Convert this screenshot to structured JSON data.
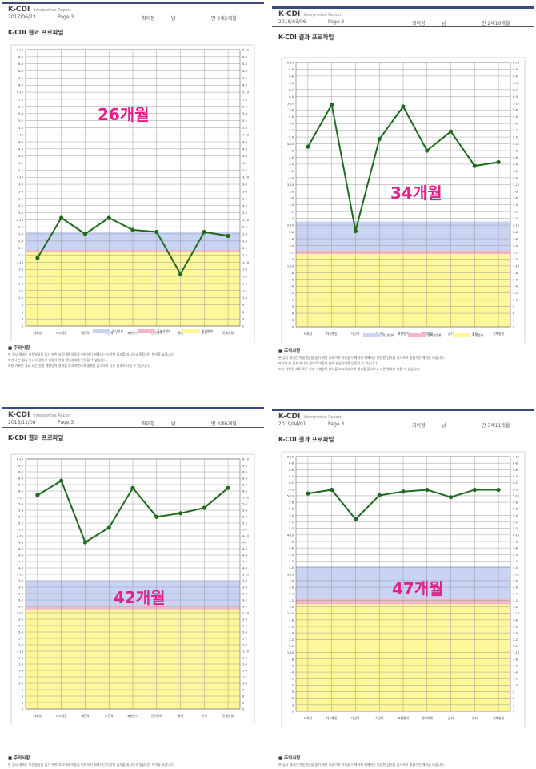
{
  "panels": [
    {
      "brand": "K-CDI",
      "brand_sub": "Interpretive Report",
      "date": "2017/06/23",
      "page": "Page 3",
      "name": "최이정",
      "gender": "남",
      "age": "만 2세2개월",
      "title": "K-CDI 결과 프로파일",
      "age_label": "26개월",
      "notes_title": "■ 주의사항",
      "notes": [
        "본 검사 결과는 아동발달을 돕기 위한 자료이며 아동을 이해하기 위해서는 다양한 검사를 실시하고 종합적인 해석을 요합니다.",
        "따라서 본 검사 하나의 결과로 아동의 현재 발달상태를 단정할 수 없습니다.",
        "또한 기록된 자료 모든 문항 개별영역 결과를 보고하였으며 결과를 참고하고 다른 결과가 나올 수 있습니다."
      ],
      "legend": [
        "정상범위",
        "경계선범위",
        "지연범위"
      ],
      "chart_data": {
        "type": "line",
        "categories": [
          "사회성",
          "자조행동",
          "대근육",
          "소근육",
          "표현언어",
          "언어이해",
          "글자",
          "숫자",
          "전체발달"
        ],
        "values": [
          1.7,
          2.7,
          2.3,
          2.7,
          2.4,
          2.35,
          1.3,
          2.35,
          2.25
        ],
        "left_ticks": [
          "6-10",
          "6-8",
          "6-6",
          "6-4",
          "6-2",
          "6-0",
          "5-10",
          "5-8",
          "5-6",
          "5-4",
          "5-2",
          "5-0",
          "4-10",
          "4-8",
          "4-6",
          "4-4",
          "4-2",
          "4-0",
          "3-10",
          "3-8",
          "3-6",
          "3-4",
          "3-2",
          "3-0",
          "2-10",
          "2-8",
          "2-6",
          "2-4",
          "2-2",
          "2-0",
          "1-10",
          "1-8",
          "1-6",
          "1-4",
          "1-2",
          "1-0",
          "9",
          "6",
          "3",
          "0"
        ],
        "right_ticks": [
          "6-10",
          "6-8",
          "6-6",
          "6-4",
          "6-2",
          "6-0",
          "5-10",
          "5-8",
          "5-6",
          "5-4",
          "5-2",
          "5-0",
          "4-10",
          "4-8",
          "4-6",
          "4-4",
          "4-2",
          "4-0",
          "3-10",
          "3-8",
          "3-6",
          "3-4",
          "3-2",
          "3-0",
          "2-10",
          "2-8",
          "2-6",
          "2-4",
          "2-2",
          "2-0",
          "1-10",
          "1-8",
          "1-6",
          "1-4",
          "1-2",
          "1-0",
          "9",
          "6",
          "3",
          "0"
        ],
        "normal_range": [
          1.9,
          2.35
        ],
        "borderline_range": [
          1.85,
          1.9
        ],
        "delayed_range": [
          0,
          1.85
        ],
        "ylim": [
          0,
          6.9
        ],
        "grid": true,
        "colors": {
          "line": "#1e6b1e",
          "normal": "#c9d4f4",
          "borderline": "#f2b8c6",
          "delayed": "#fff79a",
          "age": "#e0218a"
        }
      }
    },
    {
      "brand": "K-CDI",
      "brand_sub": "Interpretive Report",
      "date": "2018/03/06",
      "page": "Page 3",
      "name": "최이정",
      "gender": "남",
      "age": "만 2세10개월",
      "title": "K-CDI 결과 프로파일",
      "age_label": "34개월",
      "notes_title": "■ 주의사항",
      "notes": [
        "본 검사 결과는 아동발달을 돕기 위한 자료이며 아동을 이해하기 위해서는 다양한 검사를 실시하고 종합적인 해석을 요합니다.",
        "따라서 본 검사 하나의 결과로 아동의 현재 발달상태를 단정할 수 없습니다.",
        "또한 기록된 자료 모든 문항 개별영역 결과를 보고하였으며 결과를 참고하고 다른 결과가 나올 수 있습니다."
      ],
      "legend": [
        "정상범위",
        "경계선범위",
        "지연범위"
      ],
      "chart_data": {
        "type": "line",
        "categories": [
          "사회성",
          "자조행동",
          "대근육",
          "소근육",
          "표현언어",
          "언어이해",
          "글자",
          "숫자",
          "전체발달"
        ],
        "values": [
          4.7,
          5.8,
          2.5,
          4.9,
          5.75,
          4.6,
          5.1,
          4.2,
          4.3
        ],
        "left_ticks": [
          "6-10",
          "6-8",
          "6-6",
          "6-4",
          "6-2",
          "6-0",
          "5-10",
          "5-8",
          "5-6",
          "5-4",
          "5-2",
          "5-0",
          "4-10",
          "4-8",
          "4-6",
          "4-4",
          "4-2",
          "4-0",
          "3-10",
          "3-8",
          "3-6",
          "3-4",
          "3-2",
          "3-0",
          "2-10",
          "2-8",
          "2-6",
          "2-4",
          "2-2",
          "2-0",
          "1-10",
          "1-8",
          "1-6",
          "1-4",
          "1-2",
          "1-0",
          "9",
          "6",
          "3",
          "0"
        ],
        "right_ticks": [
          "6-10",
          "6-8",
          "6-6",
          "6-4",
          "6-2",
          "6-0",
          "5-10",
          "5-8",
          "5-6",
          "5-4",
          "5-2",
          "5-0",
          "4-10",
          "4-8",
          "4-6",
          "4-4",
          "4-2",
          "4-0",
          "3-10",
          "3-8",
          "3-6",
          "3-4",
          "3-2",
          "3-0",
          "2-10",
          "2-8",
          "2-6",
          "2-4",
          "2-2",
          "2-0",
          "1-10",
          "1-8",
          "1-6",
          "1-4",
          "1-2",
          "1-0",
          "9",
          "6",
          "3",
          "0"
        ],
        "normal_range": [
          2.0,
          2.75
        ],
        "borderline_range": [
          1.9,
          2.0
        ],
        "delayed_range": [
          0,
          1.9
        ],
        "ylim": [
          0,
          6.9
        ],
        "grid": true,
        "colors": {
          "line": "#1e6b1e",
          "normal": "#c9d4f4",
          "borderline": "#f2b8c6",
          "delayed": "#fff79a",
          "age": "#e0218a"
        }
      }
    },
    {
      "brand": "K-CDI",
      "brand_sub": "Interpretive Report",
      "date": "2018/11/08",
      "page": "Page 3",
      "name": "최이정",
      "gender": "남",
      "age": "만 3세6개월",
      "title": "K-CDI 결과 프로파일",
      "age_label": "42개월",
      "notes_title": "■ 주의사항",
      "notes": [
        "본 검사 결과는 아동발달을 돕기 위한 자료이며 아동을 이해하기 위해서는 다양한 검사를 실시하고 종합적인 해석을 요합니다.",
        "따라서 본 검사 하나의 결과로 아동의 현재 발달상태를 단정할 수 없습니다.",
        "또한 기록된 자료 모든 문항 개별영역 결과를 보고하였으며 결과를 참고하고 다른 결과가 나올 수 있습니다."
      ],
      "legend": [
        "정상범위",
        "경계선범위",
        "지연범위"
      ],
      "chart_data": {
        "type": "line",
        "categories": [
          "사회성",
          "자조행동",
          "대근육",
          "소근육",
          "표현언어",
          "언어이해",
          "글자",
          "숫자",
          "전체발달"
        ],
        "values": [
          5.9,
          6.3,
          4.6,
          5.0,
          6.1,
          5.3,
          5.4,
          5.55,
          6.1
        ],
        "left_ticks": [
          "6-10",
          "6-8",
          "6-6",
          "6-4",
          "6-2",
          "6-0",
          "5-10",
          "5-8",
          "5-6",
          "5-4",
          "5-2",
          "5-0",
          "4-10",
          "4-8",
          "4-6",
          "4-4",
          "4-2",
          "4-0",
          "3-10",
          "3-8",
          "3-6",
          "3-4",
          "3-2",
          "3-0",
          "2-10",
          "2-8",
          "2-6",
          "2-4",
          "2-2",
          "2-0",
          "1-10",
          "1-8",
          "1-6",
          "1-4",
          "1-2",
          "1-0",
          "9",
          "6",
          "3",
          "0"
        ],
        "right_ticks": [
          "6-10",
          "6-8",
          "6-6",
          "6-4",
          "6-2",
          "6-0",
          "5-10",
          "5-8",
          "5-6",
          "5-4",
          "5-2",
          "5-0",
          "4-10",
          "4-8",
          "4-6",
          "4-4",
          "4-2",
          "4-0",
          "3-10",
          "3-8",
          "3-6",
          "3-4",
          "3-2",
          "3-0",
          "2-10",
          "2-8",
          "2-6",
          "2-4",
          "2-2",
          "2-0",
          "1-10",
          "1-8",
          "1-6",
          "1-4",
          "1-2",
          "1-0",
          "9",
          "6",
          "3",
          "0"
        ],
        "normal_range": [
          2.85,
          3.55
        ],
        "borderline_range": [
          2.75,
          2.85
        ],
        "delayed_range": [
          0,
          2.75
        ],
        "ylim": [
          0,
          6.9
        ],
        "grid": true,
        "colors": {
          "line": "#1e6b1e",
          "normal": "#c9d4f4",
          "borderline": "#f2b8c6",
          "delayed": "#fff79a",
          "age": "#e0218a"
        }
      }
    },
    {
      "brand": "K-CDI",
      "brand_sub": "Interpretive Report",
      "date": "2019/04/01",
      "page": "Page 3",
      "name": "최이정",
      "gender": "남",
      "age": "만 3세11개월",
      "title": "K-CDI 결과 프로파일",
      "age_label": "47개월",
      "notes_title": "■ 주의사항",
      "notes": [
        "본 검사 결과는 아동발달을 돕기 위한 자료이며 아동을 이해하기 위해서는 다양한 검사를 실시하고 종합적인 해석을 요합니다.",
        "따라서 본 검사 하나의 결과로 아동의 현재 발달상태를 단정할 수 없습니다.",
        "또한 기록된 자료 모든 문항 개별영역 결과를 보고하였으며 결과를 참고하고 다른 결과가 나올 수 있습니다."
      ],
      "legend": [
        "정상범위",
        "경계선범위",
        "지연범위"
      ],
      "chart_data": {
        "type": "line",
        "categories": [
          "사회성",
          "자조행동",
          "대근육",
          "소근육",
          "표현언어",
          "언어이해",
          "글자",
          "숫자",
          "전체발달"
        ],
        "values": [
          5.9,
          6.0,
          5.2,
          5.85,
          5.95,
          6.0,
          5.8,
          6.0,
          6.0
        ],
        "left_ticks": [
          "6-10",
          "6-8",
          "6-6",
          "6-4",
          "6-2",
          "6-0",
          "5-10",
          "5-8",
          "5-6",
          "5-4",
          "5-2",
          "5-0",
          "4-10",
          "4-8",
          "4-6",
          "4-4",
          "4-2",
          "4-0",
          "3-10",
          "3-8",
          "3-6",
          "3-4",
          "3-2",
          "3-0",
          "2-10",
          "2-8",
          "2-6",
          "2-4",
          "2-2",
          "2-0",
          "1-10",
          "1-8",
          "1-6",
          "1-4",
          "1-2",
          "1-0",
          "9",
          "6",
          "3",
          "0"
        ],
        "right_ticks": [
          "6-10",
          "6-8",
          "6-6",
          "6-4",
          "6-2",
          "6-0",
          "5-10",
          "5-8",
          "5-6",
          "5-4",
          "5-2",
          "5-0",
          "4-10",
          "4-8",
          "4-6",
          "4-4",
          "4-2",
          "4-0",
          "3-10",
          "3-8",
          "3-6",
          "3-4",
          "3-2",
          "3-0",
          "2-10",
          "2-8",
          "2-6",
          "2-4",
          "2-2",
          "2-0",
          "1-10",
          "1-8",
          "1-6",
          "1-4",
          "1-2",
          "1-0",
          "9",
          "6",
          "3",
          "0"
        ],
        "normal_range": [
          3.05,
          3.95
        ],
        "borderline_range": [
          2.9,
          3.05
        ],
        "delayed_range": [
          0,
          2.9
        ],
        "ylim": [
          0,
          6.9
        ],
        "grid": true,
        "colors": {
          "line": "#1e6b1e",
          "normal": "#c9d4f4",
          "borderline": "#f2b8c6",
          "delayed": "#fff79a",
          "age": "#e0218a"
        }
      }
    }
  ]
}
